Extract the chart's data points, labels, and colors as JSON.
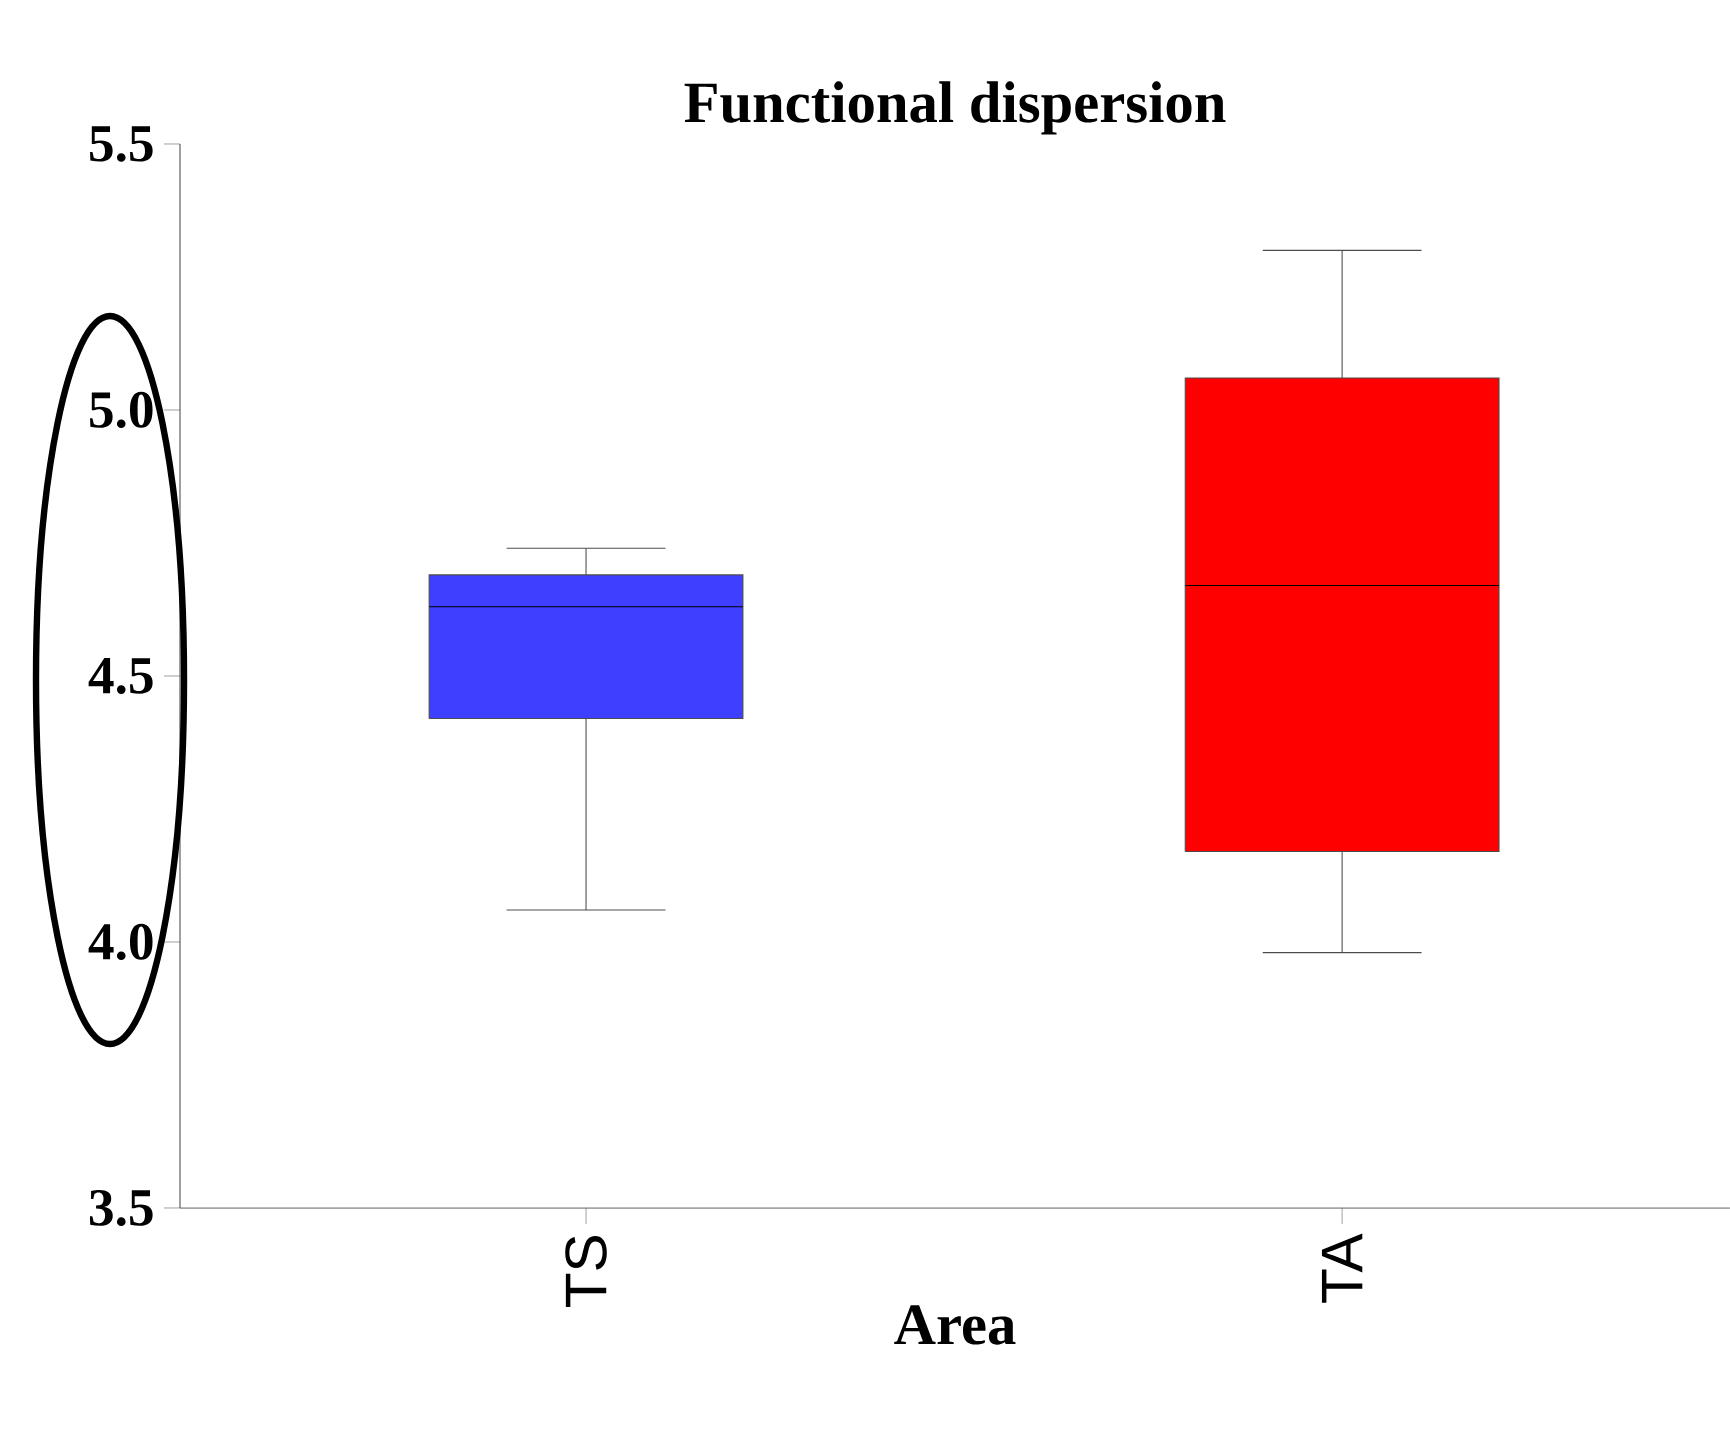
{
  "chart_data": {
    "type": "box",
    "title": "Functional dispersion",
    "xlabel": "Area",
    "categories": [
      "TS",
      "TA"
    ],
    "colors": [
      "#3f3fff",
      "#ff0000"
    ],
    "boxes": [
      {
        "low": 4.06,
        "q1": 4.42,
        "median": 4.63,
        "q3": 4.69,
        "high": 4.74
      },
      {
        "low": 3.98,
        "q1": 4.17,
        "median": 4.67,
        "q3": 5.06,
        "high": 5.3
      }
    ],
    "ylim": [
      3.5,
      5.5
    ],
    "yticks": [
      {
        "value": 3.5,
        "label": "3.5"
      },
      {
        "value": 4,
        "label": "4.0"
      },
      {
        "value": 4.5,
        "label": "4.5"
      },
      {
        "value": 5,
        "label": "5.0"
      },
      {
        "value": 5.5,
        "label": "5.5"
      }
    ]
  }
}
